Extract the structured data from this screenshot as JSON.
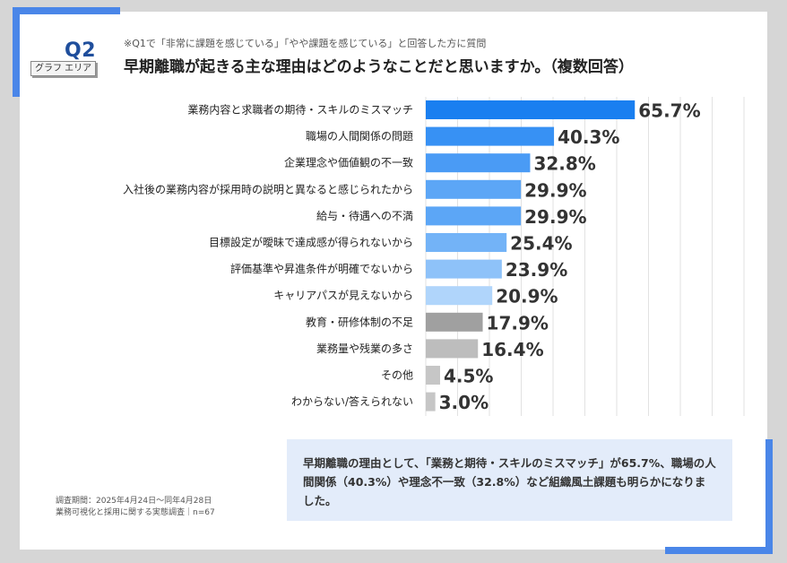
{
  "header": {
    "q_label": "Q2",
    "graph_area_tag": "グラフ エリア",
    "note": "※Q1で「非常に課題を感じている」「やや課題を感じている」と回答した方に質問",
    "title": "早期離職が起きる主な理由はどのようなことだと思いますか。（複数回答）"
  },
  "chart_data": {
    "type": "bar",
    "orientation": "horizontal",
    "title": "早期離職が起きる主な理由はどのようなことだと思いますか。（複数回答）",
    "categories": [
      "業務内容と求職者の期待・スキルのミスマッチ",
      "職場の人間関係の問題",
      "企業理念や価値観の不一致",
      "入社後の業務内容が採用時の説明と異なると感じられたから",
      "給与・待遇への不満",
      "目標設定が曖昧で達成感が得られないから",
      "評価基準や昇進条件が明確でないから",
      "キャリアパスが見えないから",
      "教育・研修体制の不足",
      "業務量や残業の多さ",
      "その他",
      "わからない/答えられない"
    ],
    "values": [
      65.7,
      40.3,
      32.8,
      29.9,
      29.9,
      25.4,
      23.9,
      20.9,
      17.9,
      16.4,
      4.5,
      3.0
    ],
    "value_labels": [
      "65.7%",
      "40.3%",
      "32.8%",
      "29.9%",
      "29.9%",
      "25.4%",
      "23.9%",
      "20.9%",
      "17.9%",
      "16.4%",
      "4.5%",
      "3.0%"
    ],
    "colors": [
      "#1a7ff0",
      "#3791f4",
      "#4a9bf5",
      "#5ca6f6",
      "#5ca6f6",
      "#73b3f7",
      "#8ec2f9",
      "#b0d5fb",
      "#a0a0a0",
      "#bdbdbd",
      "#c6c6c6",
      "#c6c6c6"
    ],
    "xlim": [
      0,
      100
    ],
    "grid": true,
    "xlabel": "",
    "ylabel": ""
  },
  "footer": {
    "line1": "調査期間：2025年4月24日～同年4月28日",
    "line2": "業務可視化と採用に関する実態調査｜n=67"
  },
  "summary": {
    "text": "早期離職の理由として、「業務と期待・スキルのミスマッチ」が65.7%、職場の人間関係（40.3%）や理念不一致（32.8%）など組織風土課題も明らかになりました。"
  }
}
